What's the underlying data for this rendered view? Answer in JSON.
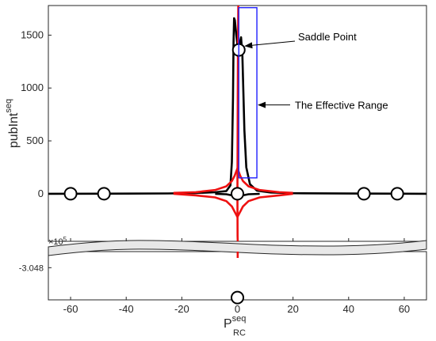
{
  "chart_data": {
    "type": "line",
    "xlabel": {
      "base": "P",
      "sup": "seq",
      "sub": "RC"
    },
    "ylabel": {
      "base": "pubInt",
      "sup": "seq"
    },
    "xlim": [
      -68,
      68
    ],
    "ylim_upper": [
      -450,
      1780
    ],
    "ylim_lower": [
      -3.0508,
      -3.0466
    ],
    "lower_multiplier": "×10",
    "lower_multiplier_exp": "5",
    "x_ticks": [
      -60,
      -40,
      -20,
      0,
      20,
      40,
      60
    ],
    "y_ticks_upper": [
      0,
      500,
      1000,
      1500
    ],
    "y_ticks_lower": [
      "-3.048"
    ],
    "grid": false,
    "colors": {
      "black_curve": "#000000",
      "red_curve": "#ee1111",
      "box": "#1f1fff"
    },
    "series": [
      {
        "color": "#000000",
        "segments": [
          [
            [
              -68,
              0
            ],
            [
              -40,
              1
            ],
            [
              -25,
              3
            ],
            [
              -15,
              7
            ],
            [
              -8,
              14
            ],
            [
              -4,
              25
            ],
            [
              -2.5,
              80
            ],
            [
              -2,
              300
            ],
            [
              -1.6,
              900
            ],
            [
              -1.4,
              1430
            ],
            [
              -1.2,
              1660
            ],
            [
              -0.9,
              1640
            ],
            [
              -0.4,
              1500
            ],
            [
              0.1,
              1380
            ],
            [
              0.5,
              1390
            ],
            [
              0.9,
              1430
            ],
            [
              1.3,
              1480
            ],
            [
              1.8,
              1300
            ],
            [
              2.5,
              600
            ],
            [
              3.2,
              250
            ],
            [
              4.5,
              90
            ],
            [
              7,
              30
            ],
            [
              12,
              12
            ],
            [
              20,
              5
            ],
            [
              40,
              2
            ],
            [
              68,
              0
            ]
          ],
          [
            [
              -8,
              -1
            ],
            [
              -4,
              -5
            ],
            [
              -2,
              -15
            ],
            [
              0,
              -30
            ],
            [
              2,
              -15
            ],
            [
              4,
              -5
            ],
            [
              8,
              -1
            ]
          ]
        ]
      },
      {
        "color": "#ee1111",
        "segments": [
          [
            [
              -23,
              8
            ],
            [
              -15,
              15
            ],
            [
              -8,
              35
            ],
            [
              -4,
              70
            ],
            [
              -2,
              120
            ],
            [
              -1,
              170
            ],
            [
              0,
              240
            ],
            [
              1,
              170
            ],
            [
              2,
              120
            ],
            [
              4,
              70
            ],
            [
              8,
              35
            ],
            [
              15,
              15
            ],
            [
              20,
              8
            ]
          ],
          [
            [
              -23,
              0
            ],
            [
              -15,
              -15
            ],
            [
              -8,
              -35
            ],
            [
              -4,
              -70
            ],
            [
              -2,
              -120
            ],
            [
              -1,
              -170
            ],
            [
              0,
              -220
            ],
            [
              1,
              -170
            ],
            [
              2,
              -120
            ],
            [
              4,
              -70
            ],
            [
              8,
              -35
            ],
            [
              15,
              -15
            ],
            [
              20,
              0
            ]
          ],
          [
            [
              0.3,
              1780
            ],
            [
              0.2,
              1400
            ],
            [
              0.1,
              900
            ],
            [
              0.05,
              400
            ],
            [
              0,
              0
            ],
            [
              0.05,
              -400
            ],
            [
              0.1,
              -450
            ]
          ]
        ]
      }
    ],
    "markers": {
      "upper": [
        [
          -60,
          0
        ],
        [
          -48,
          0
        ],
        [
          0,
          0
        ],
        [
          45.5,
          0
        ],
        [
          57.5,
          0
        ],
        [
          0.5,
          1360
        ]
      ],
      "lower": [
        [
          0,
          -3.0506
        ]
      ]
    },
    "box": {
      "x": [
        0.5,
        7
      ],
      "y": [
        150,
        1760
      ]
    },
    "annotations": [
      {
        "text": "Saddle Point",
        "target": [
          0.5,
          1360
        ]
      },
      {
        "text": "The Effective Range",
        "target": [
          7,
          840
        ]
      }
    ]
  }
}
